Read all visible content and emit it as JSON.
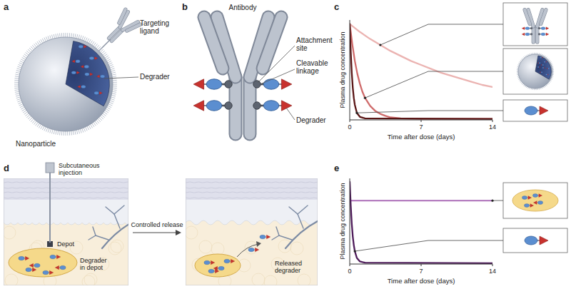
{
  "figure": {
    "panel_a": {
      "letter": "a",
      "targeting_ligand": "Targeting ligand",
      "degrader": "Degrader",
      "nanoparticle": "Nanoparticle"
    },
    "panel_b": {
      "letter": "b",
      "antibody": "Antibody",
      "attachment_site": "Attachment site",
      "cleavable_linkage": "Cleavable linkage",
      "degrader": "Degrader"
    },
    "panel_d": {
      "letter": "d",
      "injection": "Subcutaneous injection",
      "depot": "Depot",
      "degrader_in_depot": "Degrader in depot",
      "controlled_release": "Controlled release",
      "released_degrader": "Released degrader"
    }
  },
  "chart_data": [
    {
      "panel": "c",
      "type": "line",
      "x_label": "Time after dose (days)",
      "y_label": "Plasma drug concentration",
      "xlim": [
        0,
        14
      ],
      "xticks": [
        0,
        7,
        14
      ],
      "ylim": [
        0,
        100
      ],
      "tick_labels": "x",
      "series": [
        {
          "color": "#ebb3b1",
          "x": [
            0,
            1,
            2,
            3,
            4,
            5,
            6,
            7,
            8,
            9,
            10,
            11,
            12,
            13,
            14
          ],
          "values": [
            96,
            88,
            81,
            75,
            69,
            64,
            59,
            55,
            51,
            47,
            44,
            41,
            38,
            35,
            33
          ]
        },
        {
          "color": "#cf6b6b",
          "x": [
            0,
            0.25,
            0.5,
            0.75,
            1,
            1.25,
            1.5,
            2,
            2.5,
            3,
            3.5,
            4,
            5,
            7,
            14
          ],
          "values": [
            96,
            76,
            59,
            46,
            36,
            28,
            22,
            14,
            9,
            6,
            4,
            2.5,
            1.5,
            1,
            1
          ]
        },
        {
          "color": "#5a1616",
          "x": [
            0,
            0.1,
            0.2,
            0.3,
            0.4,
            0.5,
            0.7,
            1,
            1.5,
            14
          ],
          "values": [
            96,
            68,
            47,
            32,
            22,
            15,
            7,
            3,
            1.5,
            1
          ]
        }
      ]
    },
    {
      "panel": "e",
      "type": "line",
      "x_label": "Time after dose (days)",
      "y_label": "Plasma drug concentration",
      "xlim": [
        0,
        14
      ],
      "xticks": [
        0,
        7,
        14
      ],
      "ylim": [
        0,
        100
      ],
      "tick_labels": "x",
      "series": [
        {
          "color": "#b57ec0",
          "x": [
            0,
            14
          ],
          "values": [
            74,
            74
          ]
        },
        {
          "color": "#4e1c5a",
          "x": [
            0,
            0.1,
            0.2,
            0.3,
            0.4,
            0.5,
            0.7,
            1,
            1.5,
            14
          ],
          "values": [
            96,
            68,
            47,
            32,
            22,
            15,
            7,
            3,
            1.5,
            1
          ]
        }
      ]
    }
  ]
}
